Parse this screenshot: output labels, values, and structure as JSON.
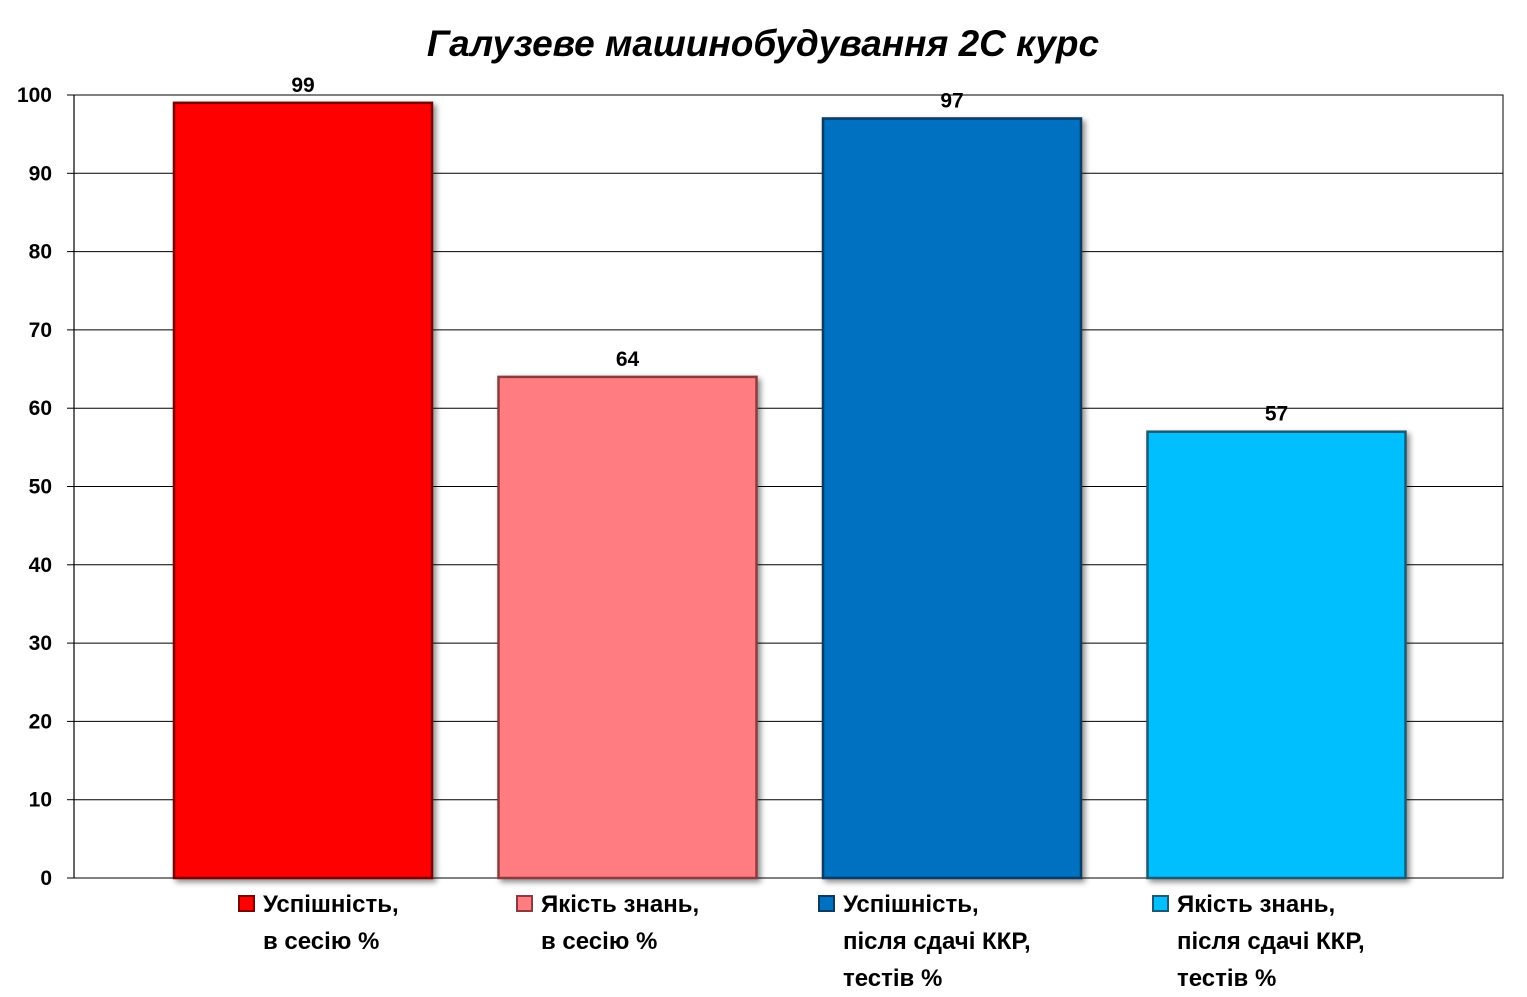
{
  "chart_data": {
    "type": "bar",
    "title": "Галузеве машинобудування 2С курс",
    "xlabel": "",
    "ylabel": "",
    "ylim": [
      0,
      100
    ],
    "yticks": [
      "0",
      "10",
      "20",
      "30",
      "40",
      "50",
      "60",
      "70",
      "80",
      "90",
      "100"
    ],
    "grid": true,
    "legend_position": "bottom",
    "series": [
      {
        "name": "Успішність, в сесію %",
        "name_lines": [
          "Успішність,",
          "в сесію %"
        ],
        "value": 99,
        "value_label": "99",
        "color": "#FF0000",
        "border_color": "#7A0000"
      },
      {
        "name": "Якість знань, в сесію %",
        "name_lines": [
          "Якість знань,",
          "в сесію %"
        ],
        "value": 64,
        "value_label": "64",
        "color": "#FF7C80",
        "border_color": "#8C3A3D"
      },
      {
        "name": "Успішність, після сдачі ККР, тестів %",
        "name_lines": [
          "Успішність,",
          "після сдачі ККР,",
          "тестів %"
        ],
        "value": 97,
        "value_label": "97",
        "color": "#0070C0",
        "border_color": "#0B3A62"
      },
      {
        "name": "Якість знань, після сдачі ККР, тестів %",
        "name_lines": [
          "Якість знань,",
          "після сдачі ККР,",
          "тестів %"
        ],
        "value": 57,
        "value_label": "57",
        "color": "#00BFFF",
        "border_color": "#1A5A72"
      }
    ]
  }
}
